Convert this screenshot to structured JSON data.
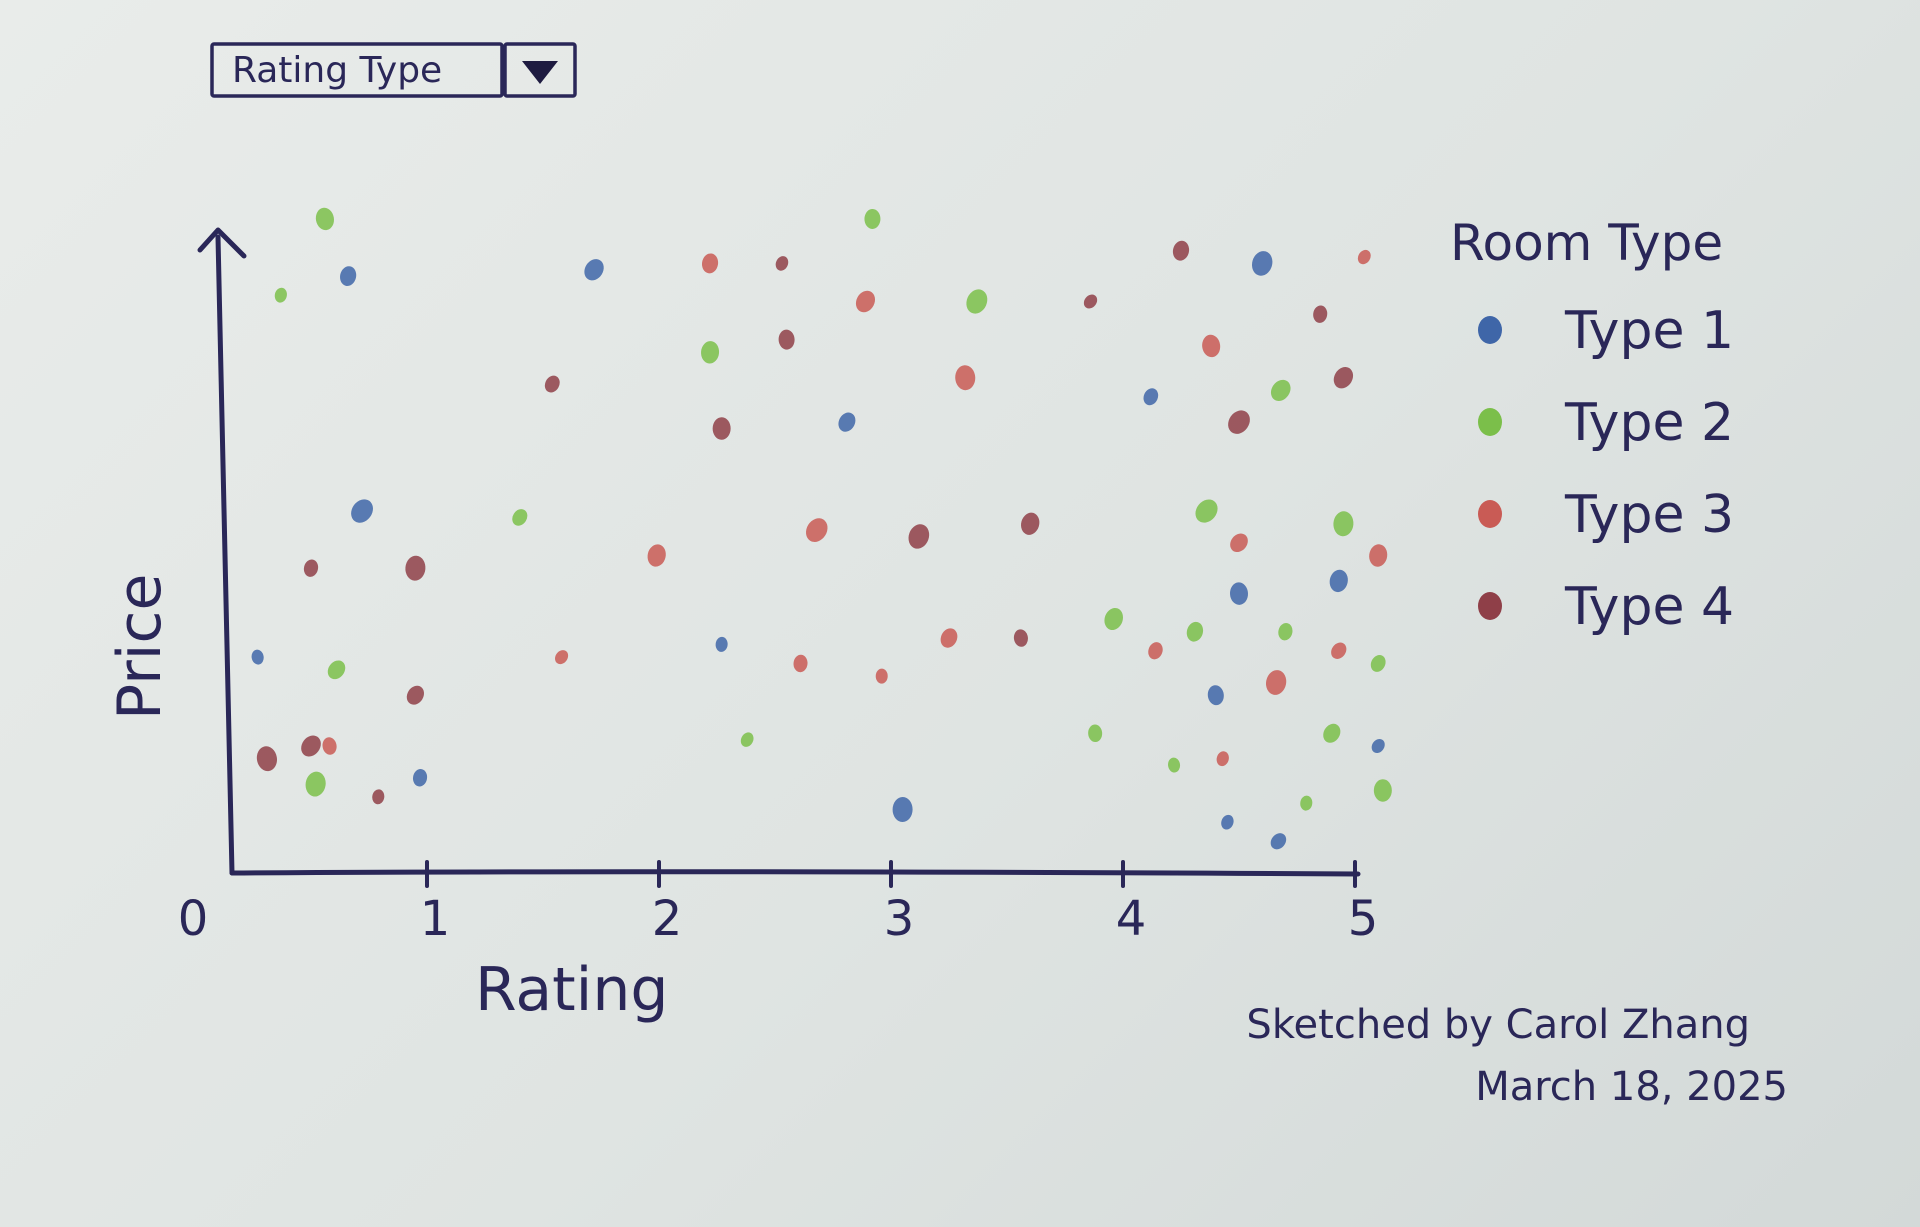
{
  "dropdown": {
    "label": "Rating Type"
  },
  "chart_data": {
    "type": "scatter",
    "title": "",
    "xlabel": "Rating",
    "ylabel": "Price",
    "xlim": [
      0,
      5
    ],
    "x_ticks": [
      "0",
      "1",
      "2",
      "3",
      "4",
      "5"
    ],
    "y_ticks_shown": false,
    "grid": false,
    "legend": {
      "title": "Room Type",
      "position": "right"
    },
    "series": [
      {
        "name": "Type 1",
        "color": "#3f66a8",
        "points": [
          {
            "x": 0.27,
            "y": 0.34
          },
          {
            "x": 0.66,
            "y": 0.94
          },
          {
            "x": 0.72,
            "y": 0.57
          },
          {
            "x": 0.97,
            "y": 0.15
          },
          {
            "x": 1.72,
            "y": 0.95
          },
          {
            "x": 2.27,
            "y": 0.36
          },
          {
            "x": 2.81,
            "y": 0.71
          },
          {
            "x": 3.05,
            "y": 0.1
          },
          {
            "x": 4.12,
            "y": 0.75
          },
          {
            "x": 4.5,
            "y": 0.44
          },
          {
            "x": 4.45,
            "y": 0.08
          },
          {
            "x": 4.4,
            "y": 0.28
          },
          {
            "x": 4.6,
            "y": 0.96
          },
          {
            "x": 4.67,
            "y": 0.05
          },
          {
            "x": 4.93,
            "y": 0.46
          },
          {
            "x": 5.1,
            "y": 0.2
          }
        ]
      },
      {
        "name": "Type 2",
        "color": "#7bbf4a",
        "points": [
          {
            "x": 0.56,
            "y": 1.03
          },
          {
            "x": 0.37,
            "y": 0.91
          },
          {
            "x": 0.61,
            "y": 0.32
          },
          {
            "x": 0.52,
            "y": 0.14
          },
          {
            "x": 1.4,
            "y": 0.56
          },
          {
            "x": 2.22,
            "y": 0.82
          },
          {
            "x": 2.38,
            "y": 0.21
          },
          {
            "x": 2.92,
            "y": 1.03
          },
          {
            "x": 3.37,
            "y": 0.9
          },
          {
            "x": 3.88,
            "y": 0.22
          },
          {
            "x": 3.96,
            "y": 0.4
          },
          {
            "x": 4.22,
            "y": 0.17
          },
          {
            "x": 4.31,
            "y": 0.38
          },
          {
            "x": 4.36,
            "y": 0.57
          },
          {
            "x": 4.7,
            "y": 0.38
          },
          {
            "x": 4.68,
            "y": 0.76
          },
          {
            "x": 4.79,
            "y": 0.11
          },
          {
            "x": 4.9,
            "y": 0.22
          },
          {
            "x": 4.95,
            "y": 0.55
          },
          {
            "x": 5.1,
            "y": 0.33
          },
          {
            "x": 5.12,
            "y": 0.13
          }
        ]
      },
      {
        "name": "Type 3",
        "color": "#c95b55",
        "points": [
          {
            "x": 0.58,
            "y": 0.2
          },
          {
            "x": 1.99,
            "y": 0.5
          },
          {
            "x": 1.58,
            "y": 0.34
          },
          {
            "x": 2.22,
            "y": 0.96
          },
          {
            "x": 2.68,
            "y": 0.54
          },
          {
            "x": 2.61,
            "y": 0.33
          },
          {
            "x": 2.89,
            "y": 0.9
          },
          {
            "x": 2.96,
            "y": 0.31
          },
          {
            "x": 3.25,
            "y": 0.37
          },
          {
            "x": 3.32,
            "y": 0.78
          },
          {
            "x": 4.14,
            "y": 0.35
          },
          {
            "x": 4.38,
            "y": 0.83
          },
          {
            "x": 4.43,
            "y": 0.18
          },
          {
            "x": 4.5,
            "y": 0.52
          },
          {
            "x": 4.66,
            "y": 0.3
          },
          {
            "x": 4.93,
            "y": 0.35
          },
          {
            "x": 5.1,
            "y": 0.5
          },
          {
            "x": 5.04,
            "y": 0.97
          }
        ]
      },
      {
        "name": "Type 4",
        "color": "#8f3f48",
        "points": [
          {
            "x": 0.31,
            "y": 0.18
          },
          {
            "x": 0.5,
            "y": 0.48
          },
          {
            "x": 0.5,
            "y": 0.2
          },
          {
            "x": 0.79,
            "y": 0.12
          },
          {
            "x": 0.95,
            "y": 0.28
          },
          {
            "x": 0.95,
            "y": 0.48
          },
          {
            "x": 1.54,
            "y": 0.77
          },
          {
            "x": 2.27,
            "y": 0.7
          },
          {
            "x": 2.53,
            "y": 0.96
          },
          {
            "x": 2.55,
            "y": 0.84
          },
          {
            "x": 3.12,
            "y": 0.53
          },
          {
            "x": 3.56,
            "y": 0.37
          },
          {
            "x": 3.6,
            "y": 0.55
          },
          {
            "x": 3.86,
            "y": 0.9
          },
          {
            "x": 4.25,
            "y": 0.98
          },
          {
            "x": 4.5,
            "y": 0.71
          },
          {
            "x": 4.85,
            "y": 0.88
          },
          {
            "x": 4.95,
            "y": 0.78
          }
        ]
      }
    ],
    "annotation": [
      "Sketched by Carol Zhang",
      "March 18, 2025"
    ]
  }
}
